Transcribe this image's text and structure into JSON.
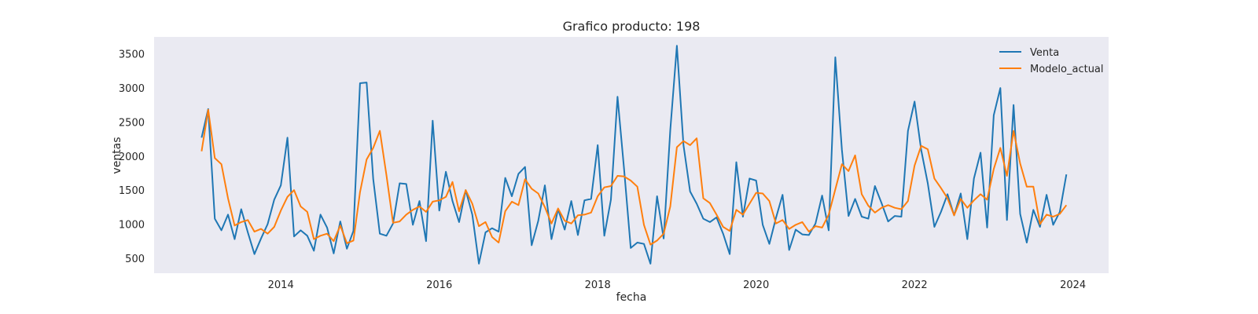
{
  "chart_data": {
    "type": "line",
    "title": "Grafico producto: 198",
    "xlabel": "fecha",
    "ylabel": "ventas",
    "xlim": [
      2012.4,
      2024.45
    ],
    "ylim": [
      280,
      3750
    ],
    "xticks": [
      2014,
      2016,
      2018,
      2020,
      2022,
      2024
    ],
    "xtick_labels": [
      "2014",
      "2016",
      "2018",
      "2020",
      "2022",
      "2024"
    ],
    "yticks": [
      500,
      1000,
      1500,
      2000,
      2500,
      3000,
      3500
    ],
    "ytick_labels": [
      "500",
      "1000",
      "1500",
      "2000",
      "2500",
      "3000",
      "3500"
    ],
    "grid": false,
    "legend": "top-right",
    "background": "#eaeaf2",
    "x": [
      "2013-01",
      "2013-02",
      "2013-03",
      "2013-04",
      "2013-05",
      "2013-06",
      "2013-07",
      "2013-08",
      "2013-09",
      "2013-10",
      "2013-11",
      "2013-12",
      "2014-01",
      "2014-02",
      "2014-03",
      "2014-04",
      "2014-05",
      "2014-06",
      "2014-07",
      "2014-08",
      "2014-09",
      "2014-10",
      "2014-11",
      "2014-12",
      "2015-01",
      "2015-02",
      "2015-03",
      "2015-04",
      "2015-05",
      "2015-06",
      "2015-07",
      "2015-08",
      "2015-09",
      "2015-10",
      "2015-11",
      "2015-12",
      "2016-01",
      "2016-02",
      "2016-03",
      "2016-04",
      "2016-05",
      "2016-06",
      "2016-07",
      "2016-08",
      "2016-09",
      "2016-10",
      "2016-11",
      "2016-12",
      "2017-01",
      "2017-02",
      "2017-03",
      "2017-04",
      "2017-05",
      "2017-06",
      "2017-07",
      "2017-08",
      "2017-09",
      "2017-10",
      "2017-11",
      "2017-12",
      "2018-01",
      "2018-02",
      "2018-03",
      "2018-04",
      "2018-05",
      "2018-06",
      "2018-07",
      "2018-08",
      "2018-09",
      "2018-10",
      "2018-11",
      "2018-12",
      "2019-01",
      "2019-02",
      "2019-03",
      "2019-04",
      "2019-05",
      "2019-06",
      "2019-07",
      "2019-08",
      "2019-09",
      "2019-10",
      "2019-11",
      "2019-12",
      "2020-01",
      "2020-02",
      "2020-03",
      "2020-04",
      "2020-05",
      "2020-06",
      "2020-07",
      "2020-08",
      "2020-09",
      "2020-10",
      "2020-11",
      "2020-12",
      "2021-01",
      "2021-02",
      "2021-03",
      "2021-04",
      "2021-05",
      "2021-06",
      "2021-07",
      "2021-08",
      "2021-09",
      "2021-10",
      "2021-11",
      "2021-12",
      "2022-01",
      "2022-02",
      "2022-03",
      "2022-04",
      "2022-05",
      "2022-06",
      "2022-07",
      "2022-08",
      "2022-09",
      "2022-10",
      "2022-11",
      "2022-12",
      "2023-01",
      "2023-02",
      "2023-03",
      "2023-04",
      "2023-05",
      "2023-06",
      "2023-07",
      "2023-08",
      "2023-09",
      "2023-10",
      "2023-11",
      "2023-12"
    ],
    "series": [
      {
        "name": "Venta",
        "color": "#1f77b4",
        "values": [
          2270,
          2690,
          1080,
          910,
          1140,
          780,
          1220,
          880,
          560,
          790,
          1000,
          1360,
          1570,
          2270,
          820,
          910,
          830,
          610,
          1140,
          950,
          570,
          1040,
          640,
          900,
          3070,
          3080,
          1660,
          860,
          830,
          1010,
          1600,
          1590,
          990,
          1340,
          750,
          2520,
          1200,
          1770,
          1340,
          1030,
          1500,
          1140,
          420,
          880,
          940,
          890,
          1680,
          1410,
          1740,
          1840,
          690,
          1050,
          1570,
          780,
          1220,
          920,
          1340,
          840,
          1350,
          1370,
          2160,
          830,
          1360,
          2870,
          1800,
          650,
          730,
          710,
          420,
          1410,
          790,
          2380,
          3620,
          2160,
          1480,
          1300,
          1080,
          1030,
          1100,
          860,
          560,
          1910,
          1110,
          1670,
          1640,
          990,
          710,
          1090,
          1430,
          620,
          920,
          850,
          840,
          1010,
          1420,
          910,
          3450,
          2090,
          1120,
          1370,
          1110,
          1080,
          1560,
          1310,
          1040,
          1120,
          1110,
          2370,
          2800,
          2090,
          1600,
          960,
          1180,
          1440,
          1130,
          1450,
          780,
          1670,
          2050,
          950,
          2600,
          3000,
          1060,
          2750,
          1150,
          730,
          1210,
          960,
          1430,
          990,
          1180,
          1730
        ]
      },
      {
        "name": "Modelo_actual",
        "color": "#ff7f0e",
        "values": [
          2070,
          2680,
          1970,
          1880,
          1380,
          980,
          1030,
          1060,
          890,
          930,
          860,
          960,
          1200,
          1400,
          1500,
          1260,
          1180,
          780,
          830,
          860,
          750,
          980,
          720,
          760,
          1470,
          1950,
          2120,
          2370,
          1720,
          1020,
          1040,
          1140,
          1210,
          1260,
          1180,
          1330,
          1350,
          1400,
          1620,
          1190,
          1500,
          1300,
          970,
          1030,
          810,
          730,
          1190,
          1330,
          1280,
          1660,
          1520,
          1450,
          1250,
          1010,
          1230,
          1050,
          1010,
          1130,
          1140,
          1170,
          1410,
          1540,
          1560,
          1710,
          1700,
          1640,
          1550,
          990,
          700,
          760,
          860,
          1260,
          2130,
          2220,
          2160,
          2260,
          1380,
          1310,
          1140,
          960,
          900,
          1210,
          1140,
          1300,
          1460,
          1450,
          1340,
          1010,
          1060,
          930,
          990,
          1030,
          890,
          970,
          950,
          1140,
          1510,
          1880,
          1780,
          2010,
          1440,
          1270,
          1170,
          1240,
          1280,
          1240,
          1220,
          1340,
          1860,
          2150,
          2100,
          1670,
          1530,
          1380,
          1130,
          1370,
          1240,
          1350,
          1440,
          1360,
          1810,
          2120,
          1710,
          2370,
          1890,
          1550,
          1550,
          1000,
          1140,
          1110,
          1150,
          1280
        ]
      }
    ]
  }
}
